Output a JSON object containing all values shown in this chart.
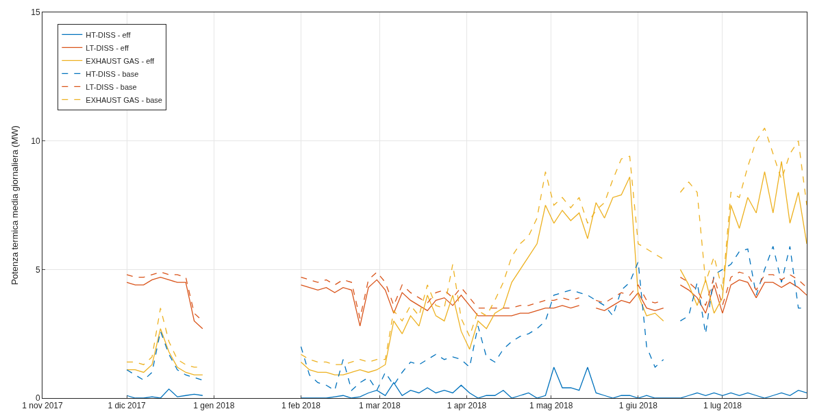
{
  "chart_data": {
    "type": "line",
    "ylabel": "Potenza termica media giornaliera (MW)",
    "x": [
      "2017-12-01",
      "2017-12-04",
      "2017-12-07",
      "2017-12-10",
      "2017-12-13",
      "2017-12-16",
      "2017-12-19",
      "2017-12-22",
      "2017-12-25",
      "2017-12-28",
      "2018-01-15",
      "2018-02-01",
      "2018-02-04",
      "2018-02-07",
      "2018-02-10",
      "2018-02-13",
      "2018-02-16",
      "2018-02-19",
      "2018-02-22",
      "2018-02-25",
      "2018-02-28",
      "2018-03-03",
      "2018-03-06",
      "2018-03-09",
      "2018-03-12",
      "2018-03-15",
      "2018-03-18",
      "2018-03-21",
      "2018-03-24",
      "2018-03-27",
      "2018-03-30",
      "2018-04-02",
      "2018-04-05",
      "2018-04-08",
      "2018-04-11",
      "2018-04-14",
      "2018-04-17",
      "2018-04-20",
      "2018-04-23",
      "2018-04-26",
      "2018-04-29",
      "2018-05-02",
      "2018-05-05",
      "2018-05-08",
      "2018-05-11",
      "2018-05-14",
      "2018-05-17",
      "2018-05-20",
      "2018-05-23",
      "2018-05-26",
      "2018-05-29",
      "2018-06-01",
      "2018-06-04",
      "2018-06-07",
      "2018-06-10",
      "2018-06-13",
      "2018-06-16",
      "2018-06-19",
      "2018-06-22",
      "2018-06-25",
      "2018-06-28",
      "2018-07-01",
      "2018-07-04",
      "2018-07-07",
      "2018-07-10",
      "2018-07-13",
      "2018-07-16",
      "2018-07-19",
      "2018-07-22",
      "2018-07-25",
      "2018-07-28",
      "2018-07-31"
    ],
    "series": [
      {
        "name": "HT-DISS - eff",
        "color": "#0072bd",
        "line_style": "solid",
        "values": [
          0.1,
          0.0,
          0.0,
          0.05,
          0.0,
          0.35,
          0.05,
          0.1,
          0.15,
          0.1,
          null,
          0.0,
          0.0,
          0.0,
          0.0,
          0.05,
          0.1,
          0.0,
          0.05,
          0.2,
          0.3,
          0.1,
          0.6,
          0.1,
          0.3,
          0.2,
          0.4,
          0.2,
          0.3,
          0.2,
          0.5,
          0.2,
          0.0,
          0.1,
          0.1,
          0.3,
          0.0,
          0.1,
          0.2,
          0.0,
          0.1,
          1.2,
          0.4,
          0.4,
          0.3,
          1.2,
          0.2,
          0.1,
          0.0,
          0.1,
          0.1,
          0.0,
          0.1,
          0.0,
          0.0,
          0.0,
          0.0,
          0.1,
          0.2,
          0.1,
          0.2,
          0.1,
          0.2,
          0.1,
          0.2,
          0.1,
          0.0,
          0.1,
          0.2,
          0.1,
          0.3,
          0.2
        ]
      },
      {
        "name": "LT-DISS - eff",
        "color": "#d95319",
        "line_style": "solid",
        "values": [
          4.5,
          4.4,
          4.4,
          4.6,
          4.7,
          4.6,
          4.5,
          4.5,
          3.0,
          2.7,
          null,
          4.4,
          4.3,
          4.2,
          4.3,
          4.1,
          4.3,
          4.2,
          2.8,
          4.3,
          4.6,
          4.2,
          3.3,
          4.1,
          3.8,
          3.6,
          3.4,
          3.8,
          3.9,
          3.6,
          4.0,
          3.6,
          3.2,
          3.2,
          3.2,
          3.2,
          3.2,
          3.3,
          3.3,
          3.4,
          3.5,
          3.5,
          3.6,
          3.5,
          3.6,
          null,
          3.5,
          3.4,
          3.6,
          3.8,
          3.7,
          4.1,
          3.5,
          3.4,
          3.5,
          null,
          4.4,
          4.2,
          3.9,
          3.3,
          4.4,
          3.3,
          4.4,
          4.6,
          4.5,
          3.9,
          4.5,
          4.5,
          4.3,
          4.5,
          4.3,
          4.0
        ]
      },
      {
        "name": "EXHAUST GAS - eff",
        "color": "#edb120",
        "line_style": "solid",
        "values": [
          1.1,
          1.1,
          1.0,
          1.3,
          2.7,
          1.8,
          1.2,
          1.0,
          0.9,
          0.9,
          null,
          1.4,
          1.1,
          1.0,
          1.0,
          0.9,
          0.9,
          1.0,
          1.1,
          1.0,
          1.1,
          1.3,
          3.0,
          2.5,
          3.2,
          2.8,
          4.0,
          3.2,
          3.0,
          4.0,
          2.6,
          1.9,
          3.0,
          2.7,
          3.3,
          3.5,
          4.5,
          5.0,
          5.5,
          6.0,
          7.5,
          6.8,
          7.3,
          6.9,
          7.2,
          6.2,
          7.6,
          7.0,
          7.8,
          7.9,
          8.6,
          4.0,
          3.2,
          3.3,
          3.0,
          null,
          5.0,
          4.4,
          3.6,
          4.6,
          3.3,
          3.9,
          7.5,
          6.6,
          7.8,
          7.2,
          8.8,
          7.2,
          9.2,
          6.8,
          8.0,
          6.0
        ]
      },
      {
        "name": "HT-DISS - base",
        "color": "#0072bd",
        "line_style": "dashed",
        "values": [
          1.1,
          0.9,
          0.7,
          1.0,
          2.6,
          1.7,
          1.1,
          0.9,
          0.8,
          0.7,
          null,
          2.0,
          0.9,
          0.6,
          0.5,
          0.3,
          1.5,
          0.3,
          0.6,
          0.8,
          0.3,
          1.0,
          0.5,
          1.0,
          1.4,
          1.3,
          1.5,
          1.7,
          1.5,
          1.6,
          1.5,
          1.2,
          2.8,
          1.6,
          1.4,
          1.9,
          2.2,
          2.4,
          2.5,
          2.7,
          3.0,
          4.0,
          4.1,
          4.2,
          4.1,
          4.0,
          3.8,
          3.6,
          3.2,
          4.2,
          4.5,
          5.3,
          2.0,
          1.2,
          1.5,
          null,
          3.0,
          3.2,
          4.5,
          2.5,
          4.8,
          5.0,
          5.2,
          5.7,
          5.8,
          4.0,
          5.0,
          5.9,
          4.5,
          5.9,
          3.5,
          3.5
        ]
      },
      {
        "name": "LT-DISS - base",
        "color": "#d95319",
        "line_style": "dashed",
        "values": [
          4.8,
          4.7,
          4.7,
          4.8,
          4.9,
          4.8,
          4.8,
          4.7,
          3.3,
          3.0,
          null,
          4.7,
          4.6,
          4.5,
          4.6,
          4.4,
          4.6,
          4.5,
          3.1,
          4.6,
          4.9,
          4.5,
          3.6,
          4.4,
          4.1,
          3.9,
          3.7,
          4.1,
          4.2,
          3.9,
          4.3,
          3.9,
          3.5,
          3.5,
          3.5,
          3.5,
          3.5,
          3.6,
          3.6,
          3.7,
          3.8,
          3.8,
          3.9,
          3.8,
          3.9,
          null,
          3.8,
          3.7,
          3.9,
          4.1,
          4.0,
          4.4,
          3.8,
          3.7,
          3.8,
          null,
          4.7,
          4.5,
          4.2,
          3.6,
          4.7,
          3.6,
          4.7,
          4.9,
          4.8,
          4.2,
          4.8,
          4.8,
          4.6,
          4.8,
          4.6,
          4.3
        ]
      },
      {
        "name": "EXHAUST GAS - base",
        "color": "#edb120",
        "line_style": "dashed",
        "values": [
          1.4,
          1.4,
          1.3,
          1.6,
          3.5,
          2.2,
          1.5,
          1.3,
          1.2,
          1.2,
          null,
          1.7,
          1.5,
          1.4,
          1.4,
          1.3,
          1.3,
          1.4,
          1.5,
          1.4,
          1.5,
          1.5,
          3.4,
          3.0,
          3.6,
          3.2,
          4.4,
          3.6,
          3.5,
          5.2,
          3.1,
          2.4,
          3.4,
          3.2,
          3.8,
          4.5,
          5.5,
          6.0,
          6.3,
          7.0,
          8.8,
          7.5,
          7.8,
          7.4,
          7.8,
          6.8,
          7.3,
          7.6,
          8.5,
          9.3,
          9.4,
          6.0,
          5.8,
          5.6,
          5.4,
          null,
          8.0,
          8.4,
          8.0,
          4.5,
          5.5,
          4.2,
          8.0,
          7.8,
          9.0,
          10.0,
          10.5,
          9.5,
          8.5,
          9.5,
          10.0,
          7.5
        ]
      }
    ],
    "xlim": [
      "2017-11-01",
      "2018-07-31"
    ],
    "xticks": [
      {
        "value": "2017-11-01",
        "label": "1 nov 2017"
      },
      {
        "value": "2017-12-01",
        "label": "1 dic 2017"
      },
      {
        "value": "2018-01-01",
        "label": "1 gen 2018"
      },
      {
        "value": "2018-02-01",
        "label": "1 feb 2018"
      },
      {
        "value": "2018-03-01",
        "label": "1 mar 2018"
      },
      {
        "value": "2018-04-01",
        "label": "1 apr 2018"
      },
      {
        "value": "2018-05-01",
        "label": "1 mag 2018"
      },
      {
        "value": "2018-06-01",
        "label": "1 giu 2018"
      },
      {
        "value": "2018-07-01",
        "label": "1 lug 2018"
      }
    ],
    "ylim": [
      0,
      15
    ],
    "yticks": [
      0,
      5,
      10,
      15
    ],
    "grid": true,
    "legend": "top left"
  }
}
